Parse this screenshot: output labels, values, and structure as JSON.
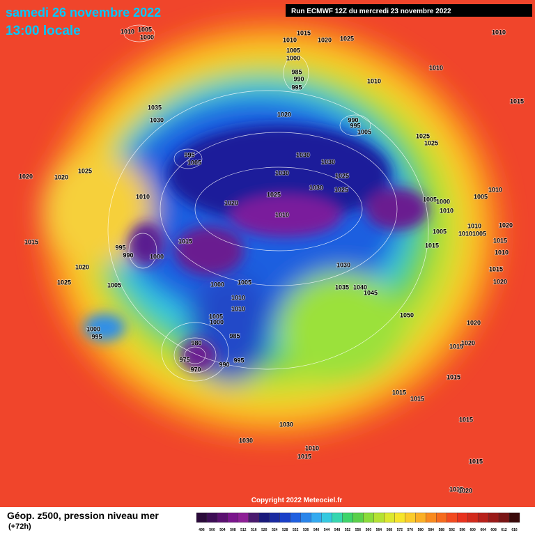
{
  "header": {
    "date": "samedi 26 novembre 2022",
    "time": "13:00 locale",
    "run": "Run ECMWF 12Z du mercredi 23 novembre 2022"
  },
  "map": {
    "copyright": "Copyright 2022 Meteociel.fr",
    "pressure_labels": [
      "1010",
      "1005",
      "1000",
      "1015",
      "1010",
      "1020",
      "1025",
      "1005",
      "1000",
      "985",
      "990",
      "995",
      "1010",
      "1010",
      "1015",
      "1010",
      "1035",
      "1030",
      "1020",
      "990",
      "995",
      "1005",
      "1025",
      "1025",
      "995",
      "1005",
      "1030",
      "1030",
      "1030",
      "1025",
      "1030",
      "1025",
      "1020",
      "1020",
      "1025",
      "1010",
      "1020",
      "1025",
      "1010",
      "1005",
      "1000",
      "1010",
      "1005",
      "1010",
      "1015",
      "1015",
      "995",
      "990",
      "1000",
      "1005",
      "1010",
      "1005",
      "1010",
      "1020",
      "1015",
      "1010",
      "1015",
      "1020",
      "1025",
      "1005",
      "1000",
      "1005",
      "1030",
      "1035",
      "1040",
      "1045",
      "1015",
      "1020",
      "1010",
      "1010",
      "1005",
      "1000",
      "985",
      "1050",
      "1020",
      "1000",
      "995",
      "1015",
      "1020",
      "980",
      "975",
      "970",
      "990",
      "995",
      "1015",
      "1015",
      "1015",
      "1015",
      "1030",
      "1030",
      "1010",
      "1015",
      "1015",
      "1015",
      "1020"
    ]
  },
  "footer": {
    "title": "Géop. z500, pression niveau mer",
    "lead": "(+72h)"
  },
  "legend": {
    "values": [
      496,
      500,
      504,
      508,
      512,
      516,
      520,
      524,
      528,
      532,
      536,
      540,
      544,
      548,
      552,
      556,
      560,
      564,
      568,
      572,
      576,
      580,
      584,
      588,
      592,
      596,
      600,
      604,
      608,
      612,
      616
    ],
    "colors": [
      "#2a0a3a",
      "#3d0d55",
      "#5a1070",
      "#7a158c",
      "#8e1f96",
      "#4a1a6e",
      "#1a1a7a",
      "#1a2aa0",
      "#1a3fc8",
      "#1f5fe0",
      "#2a85ea",
      "#33aaf0",
      "#35c9e0",
      "#36d6b0",
      "#3ed46a",
      "#5ad04a",
      "#8adc3a",
      "#b4e233",
      "#dce82e",
      "#f6e52a",
      "#fbcb2a",
      "#fbaf25",
      "#f98a1f",
      "#f66b1e",
      "#f24a20",
      "#e8321e",
      "#d22a1c",
      "#b8201a",
      "#9a1a18",
      "#7a1515",
      "#3a0a0a"
    ]
  }
}
